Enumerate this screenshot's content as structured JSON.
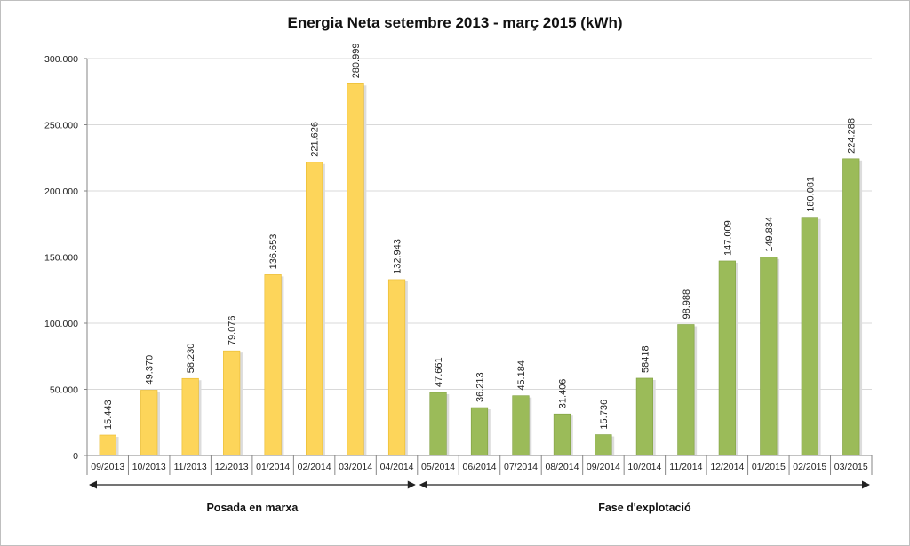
{
  "chart_data": {
    "type": "bar",
    "title": "Energia  Neta setembre 2013 - març 2015  (kWh)",
    "xlabel": "",
    "ylabel": "",
    "ylim": [
      0,
      300000
    ],
    "yticks": [
      0,
      50000,
      100000,
      150000,
      200000,
      250000,
      300000
    ],
    "ytick_labels": [
      "0",
      "50.000",
      "100.000",
      "150.000",
      "200.000",
      "250.000",
      "300.000"
    ],
    "grid": true,
    "categories": [
      "09/2013",
      "10/2013",
      "11/2013",
      "12/2013",
      "01/2014",
      "02/2014",
      "03/2014",
      "04/2014",
      "05/2014",
      "06/2014",
      "07/2014",
      "08/2014",
      "09/2014",
      "10/2014",
      "11/2014",
      "12/2014",
      "01/2015",
      "02/2015",
      "03/2015"
    ],
    "values": [
      15443,
      49370,
      58230,
      79076,
      136653,
      221626,
      280999,
      132943,
      47661,
      36213,
      45184,
      31406,
      15736,
      58418,
      98988,
      147009,
      149834,
      180081,
      224288
    ],
    "value_labels": [
      "15.443",
      "49.370",
      "58.230",
      "79.076",
      "136.653",
      "221.626",
      "280.999",
      "132.943",
      "47.661",
      "36.213",
      "45.184",
      "31.406",
      "15.736",
      "58418",
      "98.988",
      "147.009",
      "149.834",
      "180.081",
      "224.288"
    ],
    "phases": [
      {
        "label": "Posada en marxa",
        "start": 0,
        "end": 7,
        "color": "#fdd55a",
        "edge": "#e8b92c"
      },
      {
        "label": "Fase d'explotació",
        "start": 8,
        "end": 18,
        "color": "#9bbb59",
        "edge": "#7e9e3f"
      }
    ]
  }
}
